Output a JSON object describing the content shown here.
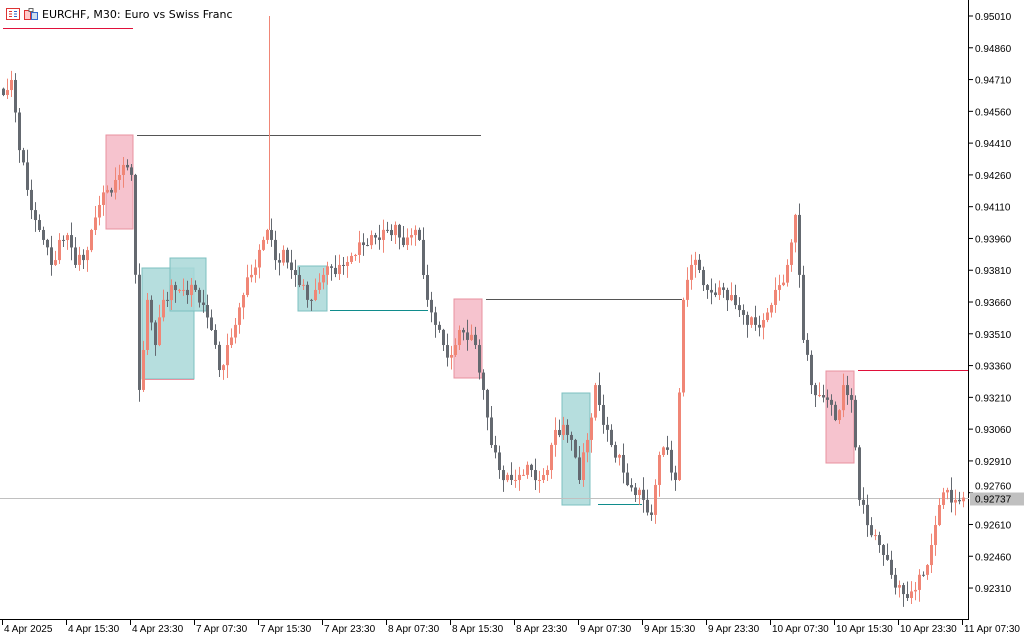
{
  "header": {
    "symbol_period": "EURCHF, M30:",
    "description": "Euro vs Swiss Franc",
    "icons": [
      "chart-list-icon",
      "indicator-icon"
    ]
  },
  "current_price": {
    "value": 0.92737,
    "label": "0.92737"
  },
  "colors": {
    "bull": "#f08676",
    "bear": "#646970",
    "demand_zone": "#a9d8d8",
    "supply_zone": "#f5c0cb",
    "red_line": "#e0103a",
    "teal_line": "#108c8c",
    "dark_line": "#555555",
    "price_line": "#c0c0c0"
  },
  "chart_data": {
    "type": "candlestick",
    "timeframe": "M30",
    "y_ticks": [
      "0.95010",
      "0.94860",
      "0.94710",
      "0.94560",
      "0.94410",
      "0.94260",
      "0.94110",
      "0.93960",
      "0.93810",
      "0.93660",
      "0.93510",
      "0.93360",
      "0.93210",
      "0.93060",
      "0.92910",
      "0.92760",
      "0.92610",
      "0.92460",
      "0.92310"
    ],
    "x_ticks": [
      "4 Apr 2025",
      "4 Apr 15:30",
      "4 Apr 23:30",
      "7 Apr 07:30",
      "7 Apr 15:30",
      "7 Apr 23:30",
      "8 Apr 07:30",
      "8 Apr 15:30",
      "8 Apr 23:30",
      "9 Apr 07:30",
      "9 Apr 15:30",
      "9 Apr 23:30",
      "10 Apr 07:30",
      "10 Apr 15:30",
      "10 Apr 23:30",
      "11 Apr 07:30"
    ],
    "ylim": [
      0.922,
      0.9505
    ],
    "grid": false,
    "closes_every_2_bars": [
      0.94637,
      0.94708,
      0.94377,
      0.94189,
      0.94047,
      0.93953,
      0.93835,
      0.93953,
      0.93976,
      0.93835,
      0.93858,
      0.94,
      0.94118,
      0.94189,
      0.94236,
      0.94307,
      0.9426,
      0.93245,
      0.9367,
      0.93457,
      0.9367,
      0.9374,
      0.93717,
      0.93693,
      0.93717,
      0.93646,
      0.93528,
      0.93339,
      0.93457,
      0.93552,
      0.93693,
      0.93788,
      0.93906,
      0.94,
      0.93858,
      0.93906,
      0.93811,
      0.9374,
      0.9367,
      0.93717,
      0.93788,
      0.93821,
      0.93835,
      0.93849,
      0.93882,
      0.93929,
      0.93976,
      0.93953,
      0.94,
      0.94024,
      0.93929,
      0.93976,
      0.93953,
      0.9367,
      0.93552,
      0.93457,
      0.9341,
      0.93528,
      0.93481,
      0.93457,
      0.93245,
      0.92985,
      0.92867,
      0.92844,
      0.9282,
      0.92844,
      0.92867,
      0.9282,
      0.92867,
      0.93056,
      0.9308,
      0.93009,
      0.9282,
      0.93009,
      0.93268,
      0.9308,
      0.92985,
      0.92938,
      0.92796,
      0.92749,
      0.92726,
      0.92655,
      0.92938,
      0.92962,
      0.9282,
      0.9367,
      0.93835,
      0.93811,
      0.93717,
      0.93693,
      0.93717,
      0.93693,
      0.93622,
      0.93552,
      0.93552,
      0.93575,
      0.93646,
      0.9374,
      0.93835,
      0.94071,
      0.93481,
      0.93268,
      0.93221,
      0.93198,
      0.93103,
      0.93268,
      0.93198,
      0.92726,
      0.92607,
      0.9256,
      0.92466,
      0.92372,
      0.92324,
      0.92263,
      0.92301,
      0.92372,
      0.92513,
      0.92702,
      0.92773,
      0.92726,
      0.92737
    ]
  }
}
